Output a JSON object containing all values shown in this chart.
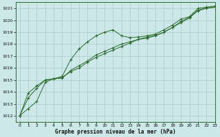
{
  "title": "Graphe pression niveau de la mer (hPa)",
  "bg_color": "#cce8e8",
  "grid_color": "#aacccc",
  "line_color": "#2d6a2d",
  "marker_color": "#2d6a2d",
  "xlim": [
    -0.5,
    23
  ],
  "ylim": [
    1011.5,
    1021.5
  ],
  "xticks": [
    0,
    1,
    2,
    3,
    4,
    5,
    6,
    7,
    8,
    9,
    10,
    11,
    12,
    13,
    14,
    15,
    16,
    17,
    18,
    19,
    20,
    21,
    22,
    23
  ],
  "yticks": [
    1012,
    1013,
    1014,
    1015,
    1016,
    1017,
    1018,
    1019,
    1020,
    1021
  ],
  "series": [
    [
      1012.0,
      1012.6,
      1013.2,
      1014.8,
      1015.1,
      1015.3,
      1016.7,
      1017.6,
      1018.2,
      1018.7,
      1019.0,
      1019.2,
      1018.7,
      1018.55,
      1018.6,
      1018.7,
      1018.85,
      1019.2,
      1019.6,
      1020.1,
      1020.3,
      1021.0,
      1021.1,
      1021.2
    ],
    [
      1012.0,
      1013.9,
      1014.5,
      1015.0,
      1015.1,
      1015.2,
      1015.7,
      1016.0,
      1016.5,
      1016.9,
      1017.2,
      1017.5,
      1017.8,
      1018.1,
      1018.4,
      1018.5,
      1018.7,
      1019.0,
      1019.4,
      1019.8,
      1020.2,
      1020.8,
      1021.0,
      1021.1
    ],
    [
      1012.0,
      1013.5,
      1014.3,
      1015.0,
      1015.1,
      1015.15,
      1015.8,
      1016.2,
      1016.6,
      1017.1,
      1017.4,
      1017.7,
      1018.0,
      1018.2,
      1018.4,
      1018.6,
      1018.75,
      1019.0,
      1019.4,
      1019.9,
      1020.25,
      1020.85,
      1021.05,
      1021.1
    ]
  ]
}
